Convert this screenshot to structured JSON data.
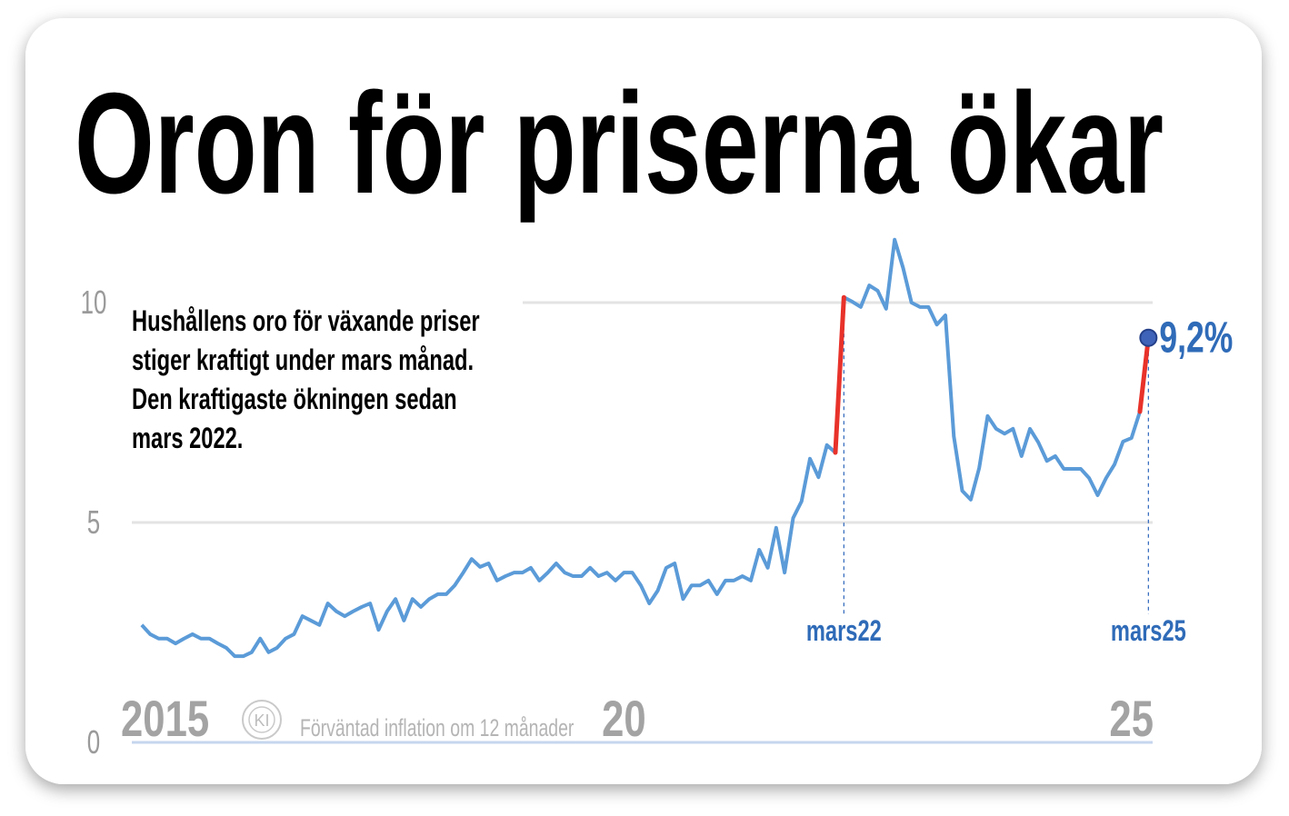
{
  "chart_data": {
    "type": "line",
    "title": "Oron för priserna ökar",
    "note_lines": [
      "Hushållens oro för växande priser",
      "stiger kraftigt under mars månad.",
      "Den kraftigaste ökningen sedan",
      "mars 2022."
    ],
    "source": "Förväntad inflation om 12 månader",
    "logo": "KI",
    "xlim": [
      2015,
      2025.5
    ],
    "xticks": [
      {
        "value": 2015,
        "label": "2015"
      },
      {
        "value": 2020,
        "label": "20"
      },
      {
        "value": 2025,
        "label": "25"
      }
    ],
    "ylim": [
      0,
      12
    ],
    "yticks": [
      0,
      5,
      10
    ],
    "grid": true,
    "highlight_color": "#e8322a",
    "annotations": [
      {
        "x": 2022.167,
        "label": "mars22"
      },
      {
        "x": 2025.167,
        "label": "mars25"
      }
    ],
    "x": [
      2015.25,
      2015.333,
      2015.417,
      2015.5,
      2015.583,
      2015.667,
      2015.75,
      2015.833,
      2015.917,
      2016,
      2016.083,
      2016.167,
      2016.25,
      2016.333,
      2016.417,
      2016.5,
      2016.583,
      2016.667,
      2016.75,
      2016.833,
      2016.917,
      2017,
      2017.083,
      2017.167,
      2017.25,
      2017.333,
      2017.417,
      2017.5,
      2017.583,
      2017.667,
      2017.75,
      2017.833,
      2017.917,
      2018,
      2018.083,
      2018.167,
      2018.25,
      2018.333,
      2018.417,
      2018.5,
      2018.583,
      2018.667,
      2018.75,
      2018.833,
      2018.917,
      2019,
      2019.083,
      2019.167,
      2019.25,
      2019.333,
      2019.417,
      2019.5,
      2019.583,
      2019.667,
      2019.75,
      2019.833,
      2019.917,
      2020,
      2020.083,
      2020.167,
      2020.25,
      2020.333,
      2020.417,
      2020.5,
      2020.583,
      2020.667,
      2020.75,
      2020.833,
      2020.917,
      2021,
      2021.083,
      2021.167,
      2021.25,
      2021.333,
      2021.417,
      2021.5,
      2021.583,
      2021.667,
      2021.75,
      2021.833,
      2021.917,
      2022,
      2022.083,
      2022.167,
      2022.25,
      2022.333,
      2022.417,
      2022.5,
      2022.583,
      2022.667,
      2022.75,
      2022.833,
      2022.917,
      2023,
      2023.083,
      2023.167,
      2023.25,
      2023.333,
      2023.417,
      2023.5,
      2023.583,
      2023.667,
      2023.75,
      2023.833,
      2023.917,
      2024,
      2024.083,
      2024.167,
      2024.25,
      2024.333,
      2024.417,
      2024.5,
      2024.583,
      2024.667,
      2024.75,
      2024.833,
      2024.917,
      2025,
      2025.083,
      2025.167
    ],
    "series": [
      {
        "color": "#5b9bd8",
        "end_label": "9,2%",
        "values": [
          2.67,
          2.46,
          2.36,
          2.36,
          2.25,
          2.36,
          2.46,
          2.36,
          2.36,
          2.25,
          2.15,
          1.96,
          1.96,
          2.05,
          2.36,
          2.05,
          2.15,
          2.36,
          2.46,
          2.87,
          2.77,
          2.67,
          3.16,
          2.98,
          2.87,
          2.98,
          3.08,
          3.16,
          2.56,
          2.98,
          3.26,
          2.77,
          3.26,
          3.08,
          3.26,
          3.37,
          3.37,
          3.57,
          3.86,
          4.17,
          3.99,
          4.07,
          3.68,
          3.78,
          3.86,
          3.86,
          3.97,
          3.68,
          3.86,
          4.07,
          3.86,
          3.78,
          3.78,
          3.97,
          3.78,
          3.86,
          3.68,
          3.86,
          3.86,
          3.57,
          3.16,
          3.45,
          3.97,
          4.07,
          3.26,
          3.57,
          3.57,
          3.68,
          3.37,
          3.68,
          3.68,
          3.78,
          3.68,
          4.38,
          3.97,
          4.88,
          3.86,
          5.1,
          5.48,
          6.45,
          6.03,
          6.76,
          6.59,
          10.12,
          10.02,
          9.9,
          10.39,
          10.27,
          9.86,
          11.43,
          10.79,
          10.0,
          9.9,
          9.9,
          9.5,
          9.71,
          6.96,
          5.72,
          5.52,
          6.24,
          7.42,
          7.13,
          7.02,
          7.13,
          6.51,
          7.13,
          6.82,
          6.4,
          6.51,
          6.22,
          6.22,
          6.22,
          6.01,
          5.62,
          6.01,
          6.32,
          6.84,
          6.92,
          7.52,
          9.2
        ]
      }
    ]
  }
}
